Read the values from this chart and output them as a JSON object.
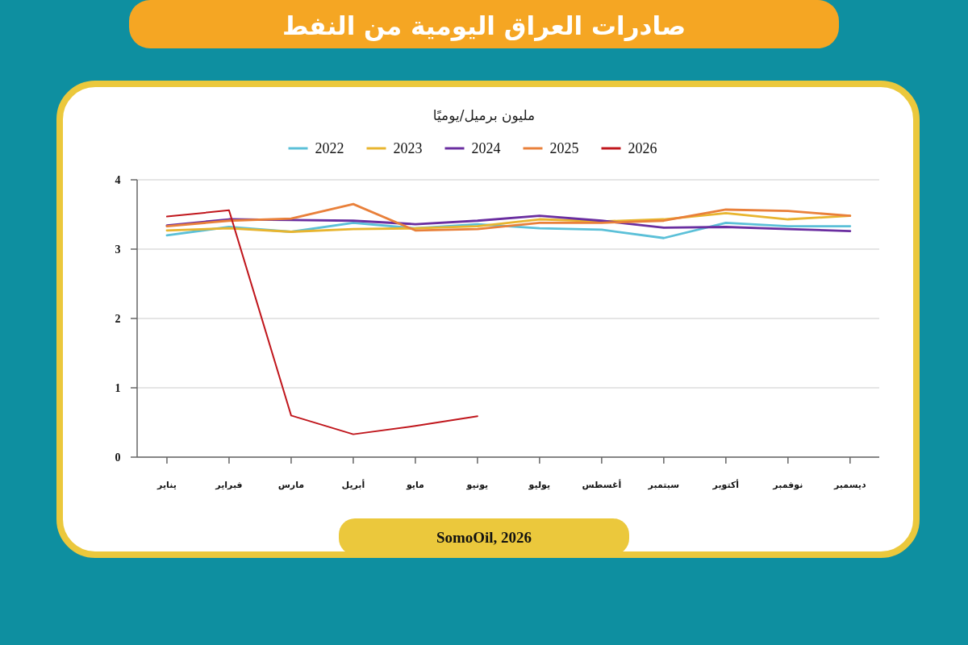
{
  "chart_data": {
    "type": "line",
    "title": "صادرات العراق اليومية من النفط",
    "ylabel": "مليون برميل/يوميًا",
    "categories": [
      "يناير",
      "فبراير",
      "مارس",
      "أبريل",
      "مايو",
      "يونيو",
      "يوليو",
      "أغسطس",
      "سبتمبر",
      "أكتوبر",
      "نوفمبر",
      "ديسمبر"
    ],
    "series": [
      {
        "name": "2022",
        "color": "#5bc0d8",
        "values": [
          3.2,
          3.32,
          3.25,
          3.38,
          3.3,
          3.36,
          3.3,
          3.28,
          3.16,
          3.38,
          3.33,
          3.33
        ]
      },
      {
        "name": "2023",
        "color": "#e8b52f",
        "values": [
          3.27,
          3.3,
          3.25,
          3.29,
          3.3,
          3.33,
          3.43,
          3.4,
          3.43,
          3.52,
          3.43,
          3.48
        ]
      },
      {
        "name": "2024",
        "color": "#6a2ea0",
        "values": [
          3.34,
          3.43,
          3.42,
          3.41,
          3.36,
          3.41,
          3.48,
          3.41,
          3.31,
          3.32,
          3.29,
          3.26
        ]
      },
      {
        "name": "2025",
        "color": "#e9803a",
        "values": [
          3.33,
          3.41,
          3.44,
          3.65,
          3.27,
          3.29,
          3.38,
          3.38,
          3.41,
          3.57,
          3.55,
          3.48
        ]
      },
      {
        "name": "2026",
        "color": "#c0161c",
        "values": [
          3.47,
          3.56,
          0.6,
          0.33,
          0.45,
          0.59,
          null,
          null,
          null,
          null,
          null,
          null
        ]
      }
    ],
    "ylim": [
      0,
      4
    ],
    "yticks": [
      0,
      1,
      2,
      3,
      4
    ],
    "grid": "y",
    "legend": "top",
    "annotations": [
      "SomoOil, 2026"
    ]
  }
}
